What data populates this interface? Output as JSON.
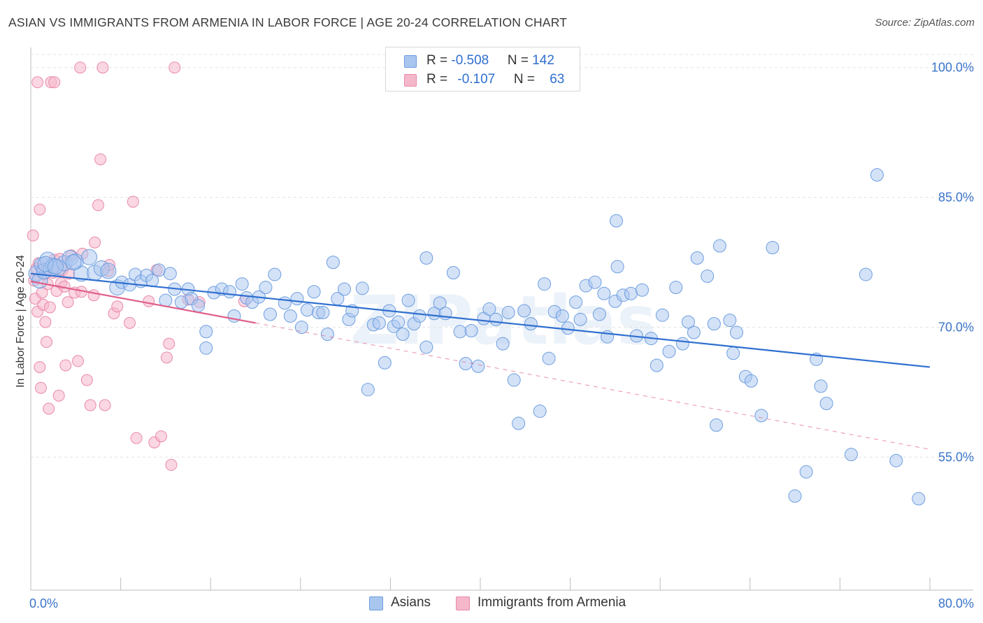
{
  "title": "ASIAN VS IMMIGRANTS FROM ARMENIA IN LABOR FORCE | AGE 20-24 CORRELATION CHART",
  "source": "Source: ZipAtlas.com",
  "watermark": "ZIPatlas",
  "legend_top": {
    "rows": [
      {
        "r_label": "R = ",
        "r_value": "-0.508",
        "n_label": "N = ",
        "n_value": "142"
      },
      {
        "r_label": "R = ",
        "r_value": "-0.107",
        "n_label": "N = ",
        "n_value": "63"
      }
    ]
  },
  "colors": {
    "asian_fill": "#a9c6ef",
    "asian_stroke": "#6d9ee0",
    "asian_line": "#2f6fd0",
    "armenia_fill": "#f5b7ca",
    "armenia_stroke": "#e98aaa",
    "armenia_line": "#e0608a",
    "grid": "#e3e3e3",
    "tick_label": "#3a74c9"
  },
  "chart_data": {
    "type": "scatter",
    "xlabel": "",
    "ylabel": "In Labor Force | Age 20-24",
    "xlim": [
      0,
      80
    ],
    "ylim": [
      40,
      102
    ],
    "x_tick_labels": [
      {
        "value": 0,
        "label": "0.0%"
      },
      {
        "value": 80,
        "label": "80.0%"
      }
    ],
    "y_tick_labels": [
      {
        "value": 100,
        "label": "100.0%"
      },
      {
        "value": 85,
        "label": "85.0%"
      },
      {
        "value": 70,
        "label": "70.0%"
      },
      {
        "value": 55,
        "label": "55.0%"
      }
    ],
    "grid": "horizontal dashed",
    "legend_placement": "top-center",
    "series": [
      {
        "name": "Asians",
        "r": -0.508,
        "n": 142,
        "trend": {
          "x0": 0,
          "y0": 76.2,
          "x1": 80,
          "y1": 65.4
        },
        "points": [
          [
            0.5,
            76.2
          ],
          [
            0.8,
            75.4
          ],
          [
            1.0,
            77.2
          ],
          [
            1.2,
            76.5
          ],
          [
            1.5,
            77.8
          ],
          [
            1.8,
            76.8
          ],
          [
            2.0,
            77.1
          ],
          [
            2.5,
            76.9
          ],
          [
            3.0,
            77.4
          ],
          [
            3.5,
            78.0
          ],
          [
            4.0,
            77.6
          ],
          [
            4.5,
            76.2
          ],
          [
            5.2,
            78.1
          ],
          [
            5.7,
            76.3
          ],
          [
            6.3,
            76.8
          ],
          [
            6.9,
            76.5
          ],
          [
            7.7,
            74.6
          ],
          [
            8.1,
            75.2
          ],
          [
            8.8,
            74.9
          ],
          [
            9.3,
            76.1
          ],
          [
            9.8,
            75.3
          ],
          [
            10.3,
            76.0
          ],
          [
            10.8,
            75.4
          ],
          [
            11.4,
            76.6
          ],
          [
            12.0,
            73.1
          ],
          [
            12.4,
            76.2
          ],
          [
            12.8,
            74.4
          ],
          [
            13.4,
            72.9
          ],
          [
            14.0,
            74.4
          ],
          [
            14.3,
            73.3
          ],
          [
            14.9,
            72.5
          ],
          [
            15.6,
            67.6
          ],
          [
            15.6,
            69.5
          ],
          [
            16.3,
            74.0
          ],
          [
            17.0,
            74.4
          ],
          [
            17.7,
            74.1
          ],
          [
            18.1,
            71.3
          ],
          [
            18.8,
            75.0
          ],
          [
            19.2,
            73.4
          ],
          [
            19.7,
            72.9
          ],
          [
            20.3,
            73.5
          ],
          [
            20.9,
            74.6
          ],
          [
            21.3,
            71.5
          ],
          [
            21.7,
            76.1
          ],
          [
            22.6,
            72.8
          ],
          [
            23.1,
            71.3
          ],
          [
            23.7,
            73.3
          ],
          [
            24.1,
            70.0
          ],
          [
            24.6,
            72.0
          ],
          [
            25.2,
            74.1
          ],
          [
            25.6,
            71.7
          ],
          [
            26.0,
            71.7
          ],
          [
            26.4,
            69.2
          ],
          [
            26.9,
            77.5
          ],
          [
            27.3,
            73.3
          ],
          [
            27.9,
            74.4
          ],
          [
            28.3,
            70.9
          ],
          [
            28.6,
            71.9
          ],
          [
            29.5,
            74.5
          ],
          [
            30.5,
            70.3
          ],
          [
            30.0,
            62.8
          ],
          [
            31.0,
            70.5
          ],
          [
            31.5,
            65.9
          ],
          [
            31.9,
            71.9
          ],
          [
            32.3,
            70.1
          ],
          [
            32.7,
            70.6
          ],
          [
            33.1,
            69.2
          ],
          [
            33.6,
            73.1
          ],
          [
            34.1,
            70.4
          ],
          [
            34.6,
            71.3
          ],
          [
            35.2,
            67.7
          ],
          [
            35.2,
            78.0
          ],
          [
            35.9,
            71.6
          ],
          [
            36.4,
            72.8
          ],
          [
            36.9,
            71.6
          ],
          [
            37.6,
            76.3
          ],
          [
            38.2,
            69.5
          ],
          [
            38.7,
            65.8
          ],
          [
            39.2,
            69.6
          ],
          [
            39.8,
            65.5
          ],
          [
            40.3,
            71.0
          ],
          [
            40.8,
            72.1
          ],
          [
            41.4,
            70.9
          ],
          [
            42.0,
            68.1
          ],
          [
            42.5,
            71.7
          ],
          [
            43.0,
            63.9
          ],
          [
            43.4,
            58.9
          ],
          [
            43.9,
            71.9
          ],
          [
            44.5,
            70.4
          ],
          [
            45.3,
            60.3
          ],
          [
            45.7,
            75.0
          ],
          [
            46.1,
            66.4
          ],
          [
            46.6,
            71.8
          ],
          [
            47.3,
            71.3
          ],
          [
            47.8,
            69.9
          ],
          [
            48.5,
            72.9
          ],
          [
            48.9,
            70.9
          ],
          [
            49.4,
            74.8
          ],
          [
            50.2,
            75.2
          ],
          [
            50.6,
            71.5
          ],
          [
            51.0,
            73.9
          ],
          [
            51.3,
            68.9
          ],
          [
            52.0,
            73.0
          ],
          [
            52.2,
            77.0
          ],
          [
            52.7,
            73.7
          ],
          [
            53.4,
            73.9
          ],
          [
            53.9,
            69.0
          ],
          [
            54.4,
            74.3
          ],
          [
            55.2,
            68.7
          ],
          [
            55.7,
            65.6
          ],
          [
            56.2,
            71.4
          ],
          [
            56.8,
            67.2
          ],
          [
            57.4,
            74.6
          ],
          [
            58.0,
            68.1
          ],
          [
            58.5,
            70.6
          ],
          [
            59.0,
            69.4
          ],
          [
            59.3,
            78.0
          ],
          [
            60.2,
            75.9
          ],
          [
            60.8,
            70.4
          ],
          [
            61.0,
            58.7
          ],
          [
            61.3,
            79.4
          ],
          [
            62.2,
            70.8
          ],
          [
            62.5,
            67.0
          ],
          [
            62.8,
            69.4
          ],
          [
            63.6,
            64.3
          ],
          [
            64.1,
            63.8
          ],
          [
            65.0,
            59.8
          ],
          [
            66.0,
            79.2
          ],
          [
            68.0,
            50.5
          ],
          [
            69.0,
            53.3
          ],
          [
            69.9,
            66.3
          ],
          [
            70.3,
            63.2
          ],
          [
            70.8,
            61.2
          ],
          [
            73.0,
            55.3
          ],
          [
            74.3,
            76.1
          ],
          [
            75.3,
            87.6
          ],
          [
            77.0,
            54.6
          ],
          [
            79.0,
            50.2
          ],
          [
            52.1,
            82.3
          ],
          [
            1.3,
            77.3
          ],
          [
            2.2,
            77.0
          ],
          [
            3.8,
            77.5
          ]
        ]
      },
      {
        "name": "Immigrants from Armenia",
        "r": -0.107,
        "n": 63,
        "trend": {
          "x0": 0,
          "y0": 75.3,
          "x1": 20,
          "y1": 70.5,
          "dashed_to_x": 80,
          "dashed_to_y": 55.9
        },
        "points": [
          [
            0.3,
            75.4
          ],
          [
            0.4,
            73.3
          ],
          [
            0.5,
            76.8
          ],
          [
            0.6,
            71.8
          ],
          [
            0.7,
            77.4
          ],
          [
            0.8,
            83.6
          ],
          [
            0.8,
            65.4
          ],
          [
            0.9,
            63.0
          ],
          [
            1.0,
            74.0
          ],
          [
            1.1,
            72.6
          ],
          [
            1.2,
            76.1
          ],
          [
            1.3,
            70.6
          ],
          [
            1.4,
            68.3
          ],
          [
            1.5,
            75.0
          ],
          [
            1.6,
            60.6
          ],
          [
            1.7,
            72.3
          ],
          [
            1.8,
            98.3
          ],
          [
            2.0,
            76.3
          ],
          [
            2.1,
            77.8
          ],
          [
            2.3,
            74.2
          ],
          [
            2.5,
            62.1
          ],
          [
            2.6,
            77.9
          ],
          [
            2.7,
            75.1
          ],
          [
            2.8,
            76.6
          ],
          [
            3.0,
            74.7
          ],
          [
            3.1,
            65.6
          ],
          [
            3.3,
            72.9
          ],
          [
            3.4,
            76.2
          ],
          [
            3.6,
            78.3
          ],
          [
            3.9,
            74.0
          ],
          [
            4.2,
            66.1
          ],
          [
            4.4,
            100.0
          ],
          [
            4.5,
            74.1
          ],
          [
            4.6,
            78.5
          ],
          [
            5.0,
            63.9
          ],
          [
            5.3,
            61.0
          ],
          [
            5.6,
            73.7
          ],
          [
            5.7,
            79.8
          ],
          [
            6.0,
            84.1
          ],
          [
            6.2,
            89.4
          ],
          [
            6.4,
            100.0
          ],
          [
            6.6,
            61.0
          ],
          [
            6.9,
            76.5
          ],
          [
            7.0,
            77.2
          ],
          [
            7.4,
            71.6
          ],
          [
            7.7,
            72.4
          ],
          [
            8.8,
            70.5
          ],
          [
            9.1,
            84.5
          ],
          [
            9.4,
            57.2
          ],
          [
            10.5,
            73.0
          ],
          [
            11.0,
            56.7
          ],
          [
            11.2,
            76.6
          ],
          [
            11.6,
            57.4
          ],
          [
            12.1,
            66.5
          ],
          [
            12.3,
            68.1
          ],
          [
            12.5,
            54.1
          ],
          [
            12.8,
            100.0
          ],
          [
            14.0,
            73.2
          ],
          [
            15.0,
            72.9
          ],
          [
            19.0,
            73.0
          ],
          [
            0.2,
            80.6
          ],
          [
            0.6,
            98.3
          ],
          [
            2.1,
            98.3
          ]
        ]
      }
    ]
  },
  "bottom_legend": [
    {
      "label": "Asians"
    },
    {
      "label": "Immigrants from Armenia"
    }
  ]
}
